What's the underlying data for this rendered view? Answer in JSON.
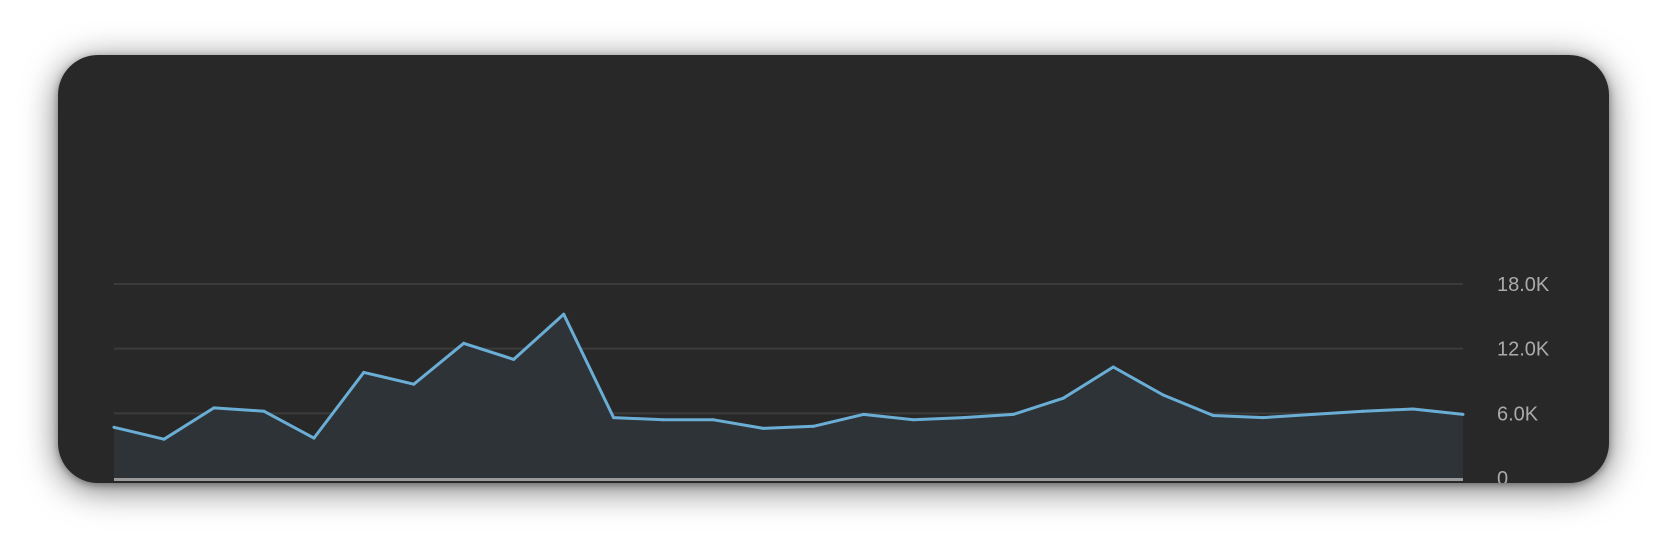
{
  "chart_data": {
    "type": "area",
    "title": "",
    "xlabel": "",
    "ylabel": "",
    "ylim": [
      0,
      18000
    ],
    "grid": true,
    "y_ticks": [
      {
        "value": 0,
        "label": "0"
      },
      {
        "value": 6000,
        "label": "6.0K"
      },
      {
        "value": 12000,
        "label": "12.0K"
      },
      {
        "value": 18000,
        "label": "18.0K"
      }
    ],
    "series": [
      {
        "values": [
          4700,
          3600,
          6500,
          6200,
          3700,
          9800,
          8700,
          12500,
          11000,
          15200,
          5600,
          5400,
          5400,
          4600,
          4800,
          5900,
          5400,
          5600,
          5900,
          7400,
          10300,
          7700,
          5800,
          5600,
          5900,
          6200,
          6400,
          5900
        ]
      }
    ],
    "colors": {
      "line": "#6aaed6",
      "fill": "#2e3337",
      "grid": "#3b3b3b",
      "baseline": "#9a9a9a",
      "background": "#282828"
    }
  }
}
